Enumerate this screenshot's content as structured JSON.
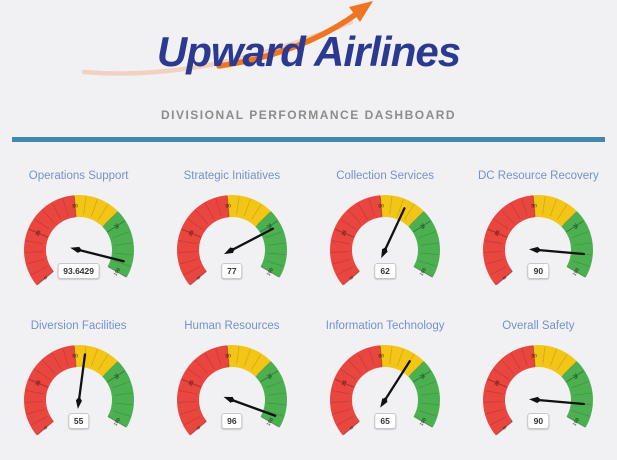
{
  "page": {
    "background": "#f1f1f4"
  },
  "header": {
    "logo_text": "Upward Airlines",
    "logo_color": "#2b3990",
    "swoosh_color": "#ee7623",
    "swoosh_faded_color": "#f2b28c",
    "subtitle": "DIVISIONAL PERFORMANCE DASHBOARD",
    "subtitle_color": "#8c8c8c",
    "divider_color": "#4187ae"
  },
  "chart_data": {
    "type": "gauge",
    "title": "Divisional Performance Dashboard",
    "legend_position": "none",
    "gauge_title_color": "#7492c8",
    "needle_color": "#111111",
    "scale": {
      "min": 0,
      "max": 100,
      "start_angle_deg": 220,
      "end_angle_deg": -30,
      "minor_tick_interval": 5,
      "label_interval": 25,
      "tick_labels": [
        0,
        25,
        50,
        75,
        100
      ],
      "ranges": [
        {
          "name": "red",
          "from": 0,
          "to": 50,
          "color": "#e8463f"
        },
        {
          "name": "yellow",
          "from": 50,
          "to": 70,
          "color": "#f3c517"
        },
        {
          "name": "green",
          "from": 70,
          "to": 100,
          "color": "#4caf50"
        }
      ]
    },
    "gauges": [
      {
        "title": "Operations Support",
        "value": 93.6429,
        "display_value": "93.6429"
      },
      {
        "title": "Strategic Initiatives",
        "value": 77,
        "display_value": "77"
      },
      {
        "title": "Collection Services",
        "value": 62,
        "display_value": "62"
      },
      {
        "title": "DC Resource Recovery",
        "value": 90,
        "display_value": "90"
      },
      {
        "title": "Diversion Facilities",
        "value": 55,
        "display_value": "55"
      },
      {
        "title": "Human Resources",
        "value": 96,
        "display_value": "96"
      },
      {
        "title": "Information Technology",
        "value": 65,
        "display_value": "65"
      },
      {
        "title": "Overall Safety",
        "value": 90,
        "display_value": "90"
      }
    ]
  }
}
